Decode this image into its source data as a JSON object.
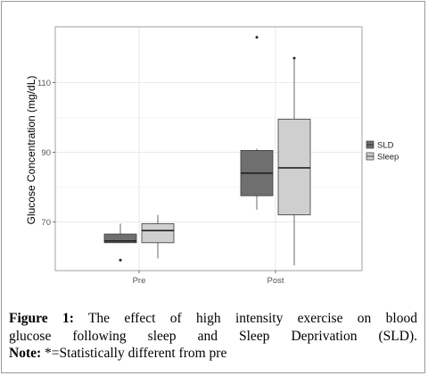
{
  "chart_data": {
    "type": "boxplot",
    "title": "",
    "xlabel": "",
    "ylabel": "Glucose Concentration (mg/dL)",
    "ylim": [
      56,
      126
    ],
    "yticks": [
      70,
      90,
      110
    ],
    "categories": [
      "Pre",
      "Post"
    ],
    "grid": true,
    "legend_position": "right",
    "series": [
      {
        "name": "SLD",
        "color": "#6f6f6f",
        "boxes": [
          {
            "category": "Pre",
            "whisker_low": 64,
            "q1": 64,
            "median": 64.5,
            "q3": 66.5,
            "whisker_high": 69.5,
            "outliers": [
              59
            ]
          },
          {
            "category": "Post",
            "whisker_low": 73.5,
            "q1": 77.5,
            "median": 84,
            "q3": 90.5,
            "whisker_high": 91,
            "outliers": [
              123
            ]
          }
        ]
      },
      {
        "name": "Sleep",
        "color": "#cfcfcf",
        "boxes": [
          {
            "category": "Pre",
            "whisker_low": 59.5,
            "q1": 64,
            "median": 67.5,
            "q3": 69.5,
            "whisker_high": 72,
            "outliers": []
          },
          {
            "category": "Post",
            "whisker_low": 57.5,
            "q1": 72,
            "median": 85.5,
            "q3": 99.5,
            "whisker_high": 116.5,
            "outliers": [
              117
            ]
          }
        ]
      }
    ]
  },
  "caption": {
    "figure_label": "Figure 1:",
    "line1_text": "The effect of high intensity exercise on blood",
    "line2_text": "glucose following sleep and Sleep Deprivation (SLD).",
    "note_label": "Note:",
    "note_text": "*=Statistically different from pre"
  }
}
